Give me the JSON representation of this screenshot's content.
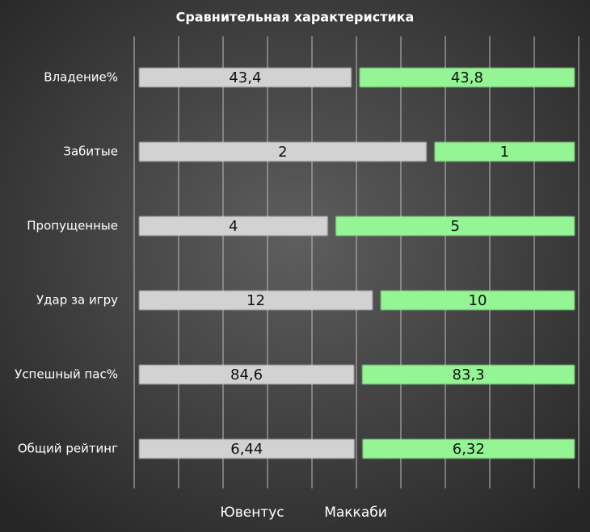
{
  "chart_data": {
    "type": "bar100h",
    "title": "Сравнительная характеристика",
    "categories": [
      "Владение%",
      "Забитые",
      "Пропущенные",
      "Удар за игру",
      "Успешный пас%",
      "Общий рейтинг"
    ],
    "series": [
      {
        "name": "Ювентус",
        "color": "#d2d2d2",
        "values": [
          43.4,
          2,
          4,
          12,
          84.6,
          6.44
        ],
        "value_labels": [
          "43,4",
          "2",
          "4",
          "12",
          "84,6",
          "6,44"
        ]
      },
      {
        "name": "Маккаби",
        "color": "#94f594",
        "values": [
          43.8,
          1,
          5,
          10,
          83.3,
          6.32
        ],
        "value_labels": [
          "43,8",
          "1",
          "5",
          "10",
          "83,3",
          "6,32"
        ]
      }
    ],
    "xlim": [
      0,
      100
    ],
    "xticks": [
      0,
      10,
      20,
      30,
      40,
      50,
      60,
      70,
      80,
      90,
      100
    ],
    "grid": true,
    "legend": "bottom"
  }
}
